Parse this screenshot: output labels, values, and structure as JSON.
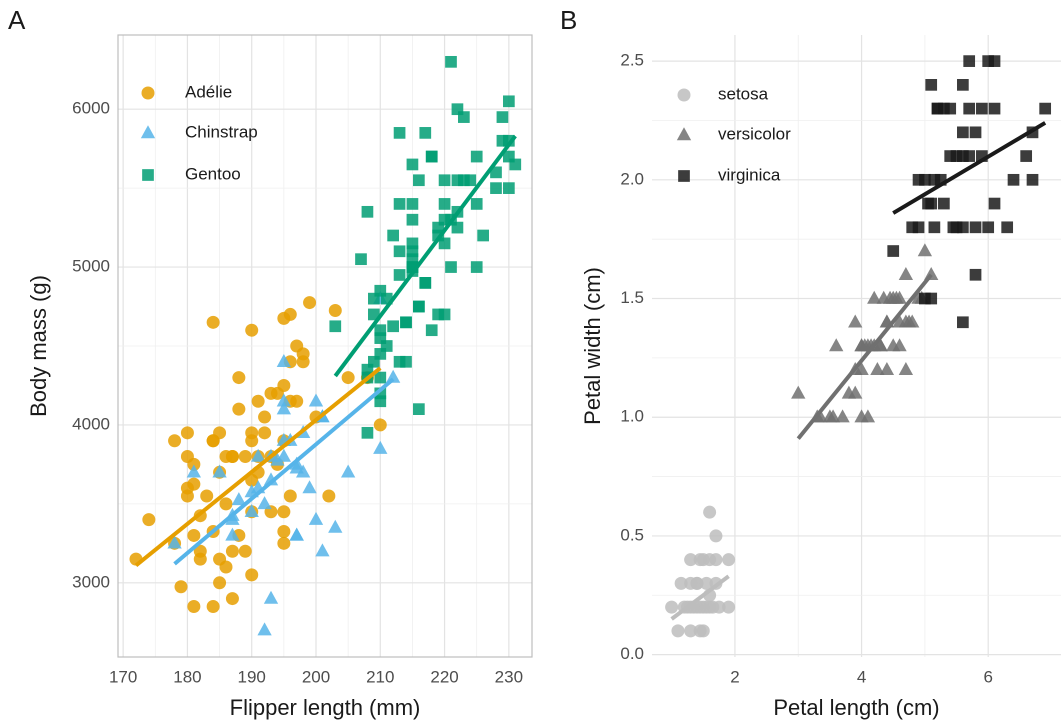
{
  "chart_data": [
    {
      "type": "scatter",
      "panel_label": "A",
      "x_label": "Flipper length (mm)",
      "y_label": "Body mass (g)",
      "xlim": [
        169.2,
        233.6
      ],
      "ylim": [
        2530,
        6470
      ],
      "xticks": [
        170,
        180,
        190,
        200,
        210,
        220,
        230
      ],
      "yticks": [
        3000,
        4000,
        5000,
        6000
      ],
      "grid": true,
      "frame": true,
      "legend": "top-left",
      "series": [
        {
          "name": "Adélie",
          "color": "#E69F00",
          "marker": "circle",
          "x": [
            181,
            186,
            195,
            193,
            190,
            181,
            195,
            182,
            191,
            198,
            185,
            195,
            197,
            184,
            194,
            174,
            180,
            189,
            185,
            180,
            187,
            183,
            187,
            172,
            180,
            178,
            178,
            188,
            184,
            195,
            196,
            190,
            180,
            181,
            184,
            182,
            195,
            186,
            196,
            185,
            190,
            182,
            179,
            190,
            191,
            186,
            188,
            200,
            187,
            191,
            193,
            181,
            194,
            185,
            192,
            184,
            192,
            188,
            190,
            198,
            190,
            196,
            197,
            195,
            184,
            189,
            196,
            187,
            193,
            202,
            205,
            208,
            203,
            199,
            210
          ],
          "values": [
            3750,
            3800,
            3250,
            3450,
            3650,
            3625,
            4675,
            3200,
            3800,
            4400,
            3700,
            3450,
            4500,
            3325,
            4200,
            3400,
            3600,
            3800,
            3950,
            3800,
            3800,
            3550,
            3200,
            3150,
            3950,
            3250,
            3900,
            3300,
            3900,
            3325,
            4150,
            3950,
            3550,
            3300,
            4650,
            3150,
            3900,
            3100,
            4400,
            3000,
            4600,
            3425,
            2975,
            3450,
            4150,
            3500,
            4300,
            4050,
            2900,
            3700,
            3800,
            2850,
            3750,
            3150,
            4050,
            2850,
            3950,
            4100,
            3050,
            4450,
            3900,
            3550,
            4150,
            4250,
            3900,
            3200,
            4700,
            3800,
            4200,
            3550,
            4300,
            4300,
            4725,
            4775,
            4000
          ],
          "fit": {
            "x": [
              172,
              210
            ],
            "y": [
              3110,
              4360
            ]
          }
        },
        {
          "name": "Chinstrap",
          "color": "#56B4E9",
          "marker": "triangle",
          "x": [
            192,
            196,
            193,
            188,
            197,
            198,
            178,
            197,
            195,
            198,
            193,
            194,
            185,
            201,
            190,
            201,
            197,
            181,
            190,
            195,
            191,
            187,
            193,
            195,
            197,
            200,
            200,
            191,
            205,
            187,
            201,
            187,
            203,
            195,
            199,
            195,
            210,
            192,
            210,
            212
          ],
          "values": [
            3500,
            3900,
            3650,
            3525,
            3725,
            3950,
            3250,
            3750,
            4150,
            3700,
            3800,
            3775,
            3700,
            4050,
            3575,
            4050,
            3300,
            3700,
            3450,
            4400,
            3600,
            3400,
            2900,
            3800,
            3300,
            4150,
            3400,
            3800,
            3700,
            3425,
            3200,
            3300,
            3350,
            4100,
            3600,
            3900,
            3850,
            2700,
            4800,
            4300
          ],
          "fit": {
            "x": [
              178,
              212
            ],
            "y": [
              3120,
              4290
            ]
          }
        },
        {
          "name": "Gentoo",
          "color": "#009E73",
          "marker": "square",
          "x": [
            211,
            230,
            210,
            218,
            215,
            210,
            211,
            219,
            209,
            215,
            214,
            216,
            214,
            213,
            210,
            217,
            210,
            221,
            209,
            222,
            218,
            215,
            213,
            215,
            215,
            215,
            216,
            215,
            210,
            220,
            222,
            209,
            207,
            230,
            220,
            220,
            213,
            219,
            208,
            208,
            208,
            225,
            210,
            216,
            222,
            217,
            225,
            213,
            215,
            210,
            220,
            225,
            217,
            208,
            224,
            221,
            214,
            231,
            219,
            229,
            220,
            223,
            216,
            221,
            230,
            223,
            212,
            228,
            218,
            226,
            203,
            215,
            228,
            229,
            222,
            213,
            212,
            230
          ],
          "values": [
            4500,
            5700,
            4450,
            5700,
            5400,
            4550,
            4800,
            5200,
            4400,
            5150,
            4650,
            5550,
            4650,
            5850,
            4200,
            5850,
            4150,
            6300,
            4800,
            5350,
            5700,
            5000,
            4400,
            5050,
            5000,
            5100,
            4100,
            5650,
            4600,
            5550,
            5250,
            4700,
            5050,
            6050,
            5150,
            5400,
            4950,
            5250,
            4350,
            5350,
            3950,
            5700,
            4300,
            4750,
            5550,
            4900,
            5400,
            5100,
            5300,
            4850,
            5300,
            5000,
            4900,
            4300,
            5550,
            5300,
            4400,
            5650,
            4700,
            5800,
            4700,
            5550,
            4750,
            5000,
            5800,
            5950,
            4625,
            5600,
            4600,
            5200,
            4625,
            4975,
            5500,
            5950,
            6000,
            5400,
            5200,
            5500
          ],
          "fit": {
            "x": [
              203,
              231
            ],
            "y": [
              4310,
              5830
            ]
          }
        }
      ]
    },
    {
      "type": "scatter",
      "panel_label": "B",
      "x_label": "Petal length (cm)",
      "y_label": "Petal width (cm)",
      "xlim": [
        0.69,
        7.15
      ],
      "ylim": [
        -0.01,
        2.61
      ],
      "xticks": [
        2,
        4,
        6
      ],
      "yticks": [
        {
          "value": 0,
          "label": "0.0"
        },
        0.5,
        {
          "value": 1,
          "label": "1.0"
        },
        1.5,
        {
          "value": 2,
          "label": "2.0"
        },
        2.5
      ],
      "grid": true,
      "frame": false,
      "legend": "top-left",
      "series": [
        {
          "name": "setosa",
          "color": "#BDBDBD",
          "marker": "circle",
          "x": [
            1.4,
            1.35,
            1.3,
            1.5,
            1.45,
            1.7,
            1.4,
            1.55,
            1.25,
            1.5,
            1.6,
            1.65,
            1.45,
            1.1,
            1.2,
            1.5,
            1.3,
            1.4,
            1.7,
            1.55,
            1.75,
            1.45,
            1.0,
            1.7,
            1.9,
            1.6,
            1.6,
            1.6,
            1.9,
            1.3,
            1.15,
            1.3
          ],
          "values": [
            0.2,
            0.2,
            0.2,
            0.2,
            0.2,
            0.4,
            0.3,
            0.2,
            0.2,
            0.1,
            0.2,
            0.2,
            0.1,
            0.1,
            0.2,
            0.4,
            0.4,
            0.3,
            0.3,
            0.3,
            0.2,
            0.4,
            0.2,
            0.5,
            0.2,
            0.25,
            0.4,
            0.6,
            0.4,
            0.3,
            0.3,
            0.1
          ],
          "fit": {
            "x": [
              1.0,
              1.9
            ],
            "y": [
              0.15,
              0.33
            ]
          }
        },
        {
          "name": "versicolor",
          "color": "#707070",
          "marker": "triangle",
          "x": [
            4.7,
            4.5,
            4.9,
            4.0,
            4.6,
            4.5,
            4.7,
            3.3,
            4.6,
            3.9,
            3.5,
            4.2,
            4.0,
            4.75,
            3.6,
            4.4,
            4.55,
            4.1,
            4.45,
            3.9,
            4.0,
            4.95,
            4.7,
            4.3,
            4.4,
            4.8,
            5.0,
            3.55,
            3.8,
            3.7,
            3.9,
            5.1,
            4.35,
            4.1,
            4.05,
            4.4,
            4.6,
            4.0,
            3.35,
            4.2,
            4.25,
            4.3,
            3.0,
            4.15
          ],
          "values": [
            1.4,
            1.5,
            1.5,
            1.3,
            1.5,
            1.3,
            1.6,
            1.0,
            1.3,
            1.4,
            1.0,
            1.5,
            1.0,
            1.4,
            1.3,
            1.4,
            1.5,
            1.0,
            1.5,
            1.1,
            1.3,
            1.5,
            1.2,
            1.3,
            1.4,
            1.4,
            1.7,
            1.0,
            1.1,
            1.0,
            1.2,
            1.6,
            1.5,
            1.3,
            1.3,
            1.2,
            1.4,
            1.2,
            1.0,
            1.3,
            1.2,
            1.3,
            1.1,
            1.3
          ],
          "fit": {
            "x": [
              3.0,
              5.1
            ],
            "y": [
              0.91,
              1.6
            ]
          }
        },
        {
          "name": "virginica",
          "color": "#1A1A1A",
          "marker": "square",
          "x": [
            6.0,
            5.1,
            5.9,
            5.6,
            5.8,
            6.6,
            4.5,
            6.3,
            5.8,
            6.1,
            5.15,
            5.3,
            5.5,
            5.0,
            5.1,
            5.3,
            5.5,
            6.7,
            6.9,
            5.0,
            5.7,
            4.9,
            6.7,
            4.9,
            5.7,
            6.0,
            4.8,
            5.6,
            5.8,
            6.1,
            6.4,
            5.6,
            5.1,
            5.6,
            6.1,
            5.6,
            5.45,
            5.4,
            5.2,
            5.9,
            5.7,
            5.2,
            5.05,
            5.25,
            5.4,
            5.15
          ],
          "values": [
            2.5,
            1.9,
            2.1,
            1.8,
            2.2,
            2.1,
            1.7,
            1.8,
            1.8,
            2.5,
            2.0,
            1.9,
            2.1,
            2.0,
            2.4,
            2.3,
            1.8,
            2.2,
            2.3,
            1.5,
            2.3,
            2.0,
            2.0,
            1.8,
            2.1,
            1.8,
            1.8,
            2.1,
            1.6,
            1.9,
            2.0,
            2.2,
            1.5,
            1.4,
            2.3,
            2.4,
            1.8,
            2.1,
            2.3,
            2.3,
            2.5,
            2.3,
            1.9,
            2.0,
            2.3,
            1.8
          ],
          "fit": {
            "x": [
              4.5,
              6.9
            ],
            "y": [
              1.86,
              2.24
            ]
          }
        }
      ]
    }
  ]
}
